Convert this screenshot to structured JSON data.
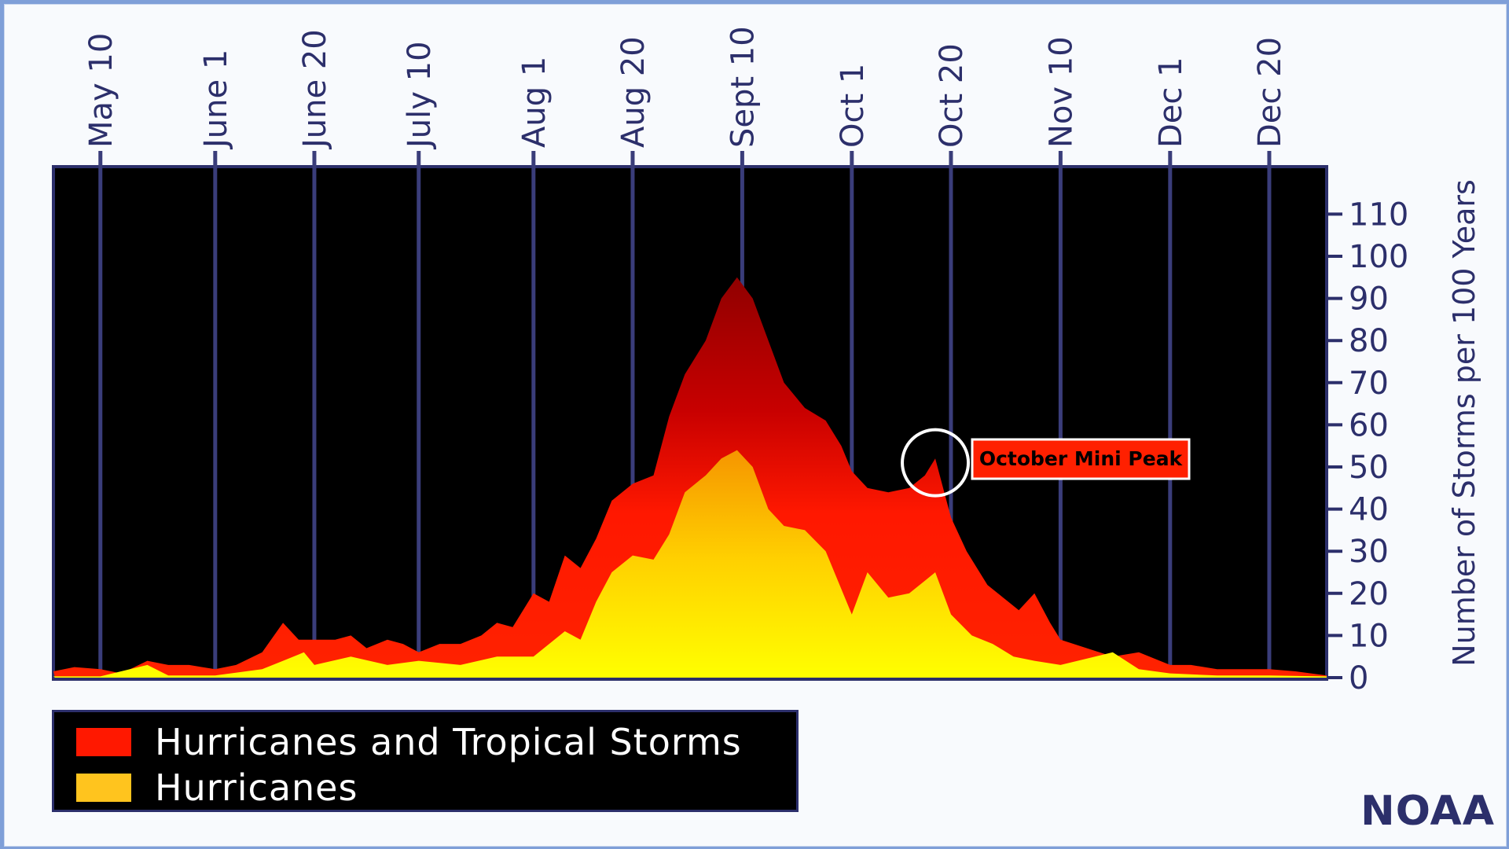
{
  "chart_data": {
    "type": "area",
    "ylabel": "Number of Storms per 100 Years",
    "xlabel": "",
    "ylim": [
      0,
      120
    ],
    "yticks": [
      0,
      10,
      20,
      30,
      40,
      50,
      60,
      70,
      80,
      90,
      100,
      110
    ],
    "xlim": [
      "May 1",
      "Dec 31"
    ],
    "x_ticks": [
      {
        "label": "May 10",
        "date": "May 10"
      },
      {
        "label": "June 1",
        "date": "June 1"
      },
      {
        "label": "June 20",
        "date": "June 20"
      },
      {
        "label": "July 10",
        "date": "July 10"
      },
      {
        "label": "Aug 1",
        "date": "Aug 1"
      },
      {
        "label": "Aug 20",
        "date": "Aug 20"
      },
      {
        "label": "Sept 10",
        "date": "Sept 10"
      },
      {
        "label": "Oct 1",
        "date": "Oct 1"
      },
      {
        "label": "Oct 20",
        "date": "Oct 20"
      },
      {
        "label": "Nov 10",
        "date": "Nov 10"
      },
      {
        "label": "Dec 1",
        "date": "Dec 1"
      },
      {
        "label": "Dec 20",
        "date": "Dec 20"
      }
    ],
    "grid": "vertical lines at tick dates",
    "legend_position": "bottom-left, below plot",
    "series": [
      {
        "name": "Hurricanes and Tropical Storms",
        "color": "#ff1800",
        "points": [
          [
            "May 1",
            1.5
          ],
          [
            "May 5",
            2.5
          ],
          [
            "May 10",
            2
          ],
          [
            "May 14",
            1
          ],
          [
            "May 19",
            4
          ],
          [
            "May 23",
            3
          ],
          [
            "May 27",
            3
          ],
          [
            "June 1",
            2
          ],
          [
            "June 5",
            3
          ],
          [
            "June 10",
            6
          ],
          [
            "June 14",
            13
          ],
          [
            "June 17",
            9
          ],
          [
            "June 20",
            9
          ],
          [
            "June 24",
            9
          ],
          [
            "June 27",
            10
          ],
          [
            "June 30",
            7
          ],
          [
            "July 4",
            9
          ],
          [
            "July 7",
            8
          ],
          [
            "July 10",
            6
          ],
          [
            "July 14",
            8
          ],
          [
            "July 18",
            8
          ],
          [
            "July 22",
            10
          ],
          [
            "July 25",
            13
          ],
          [
            "July 28",
            12
          ],
          [
            "Aug 1",
            20
          ],
          [
            "Aug 4",
            18
          ],
          [
            "Aug 7",
            29
          ],
          [
            "Aug 10",
            26
          ],
          [
            "Aug 13",
            33
          ],
          [
            "Aug 16",
            42
          ],
          [
            "Aug 20",
            46
          ],
          [
            "Aug 24",
            48
          ],
          [
            "Aug 27",
            62
          ],
          [
            "Aug 30",
            72
          ],
          [
            "Sept 3",
            80
          ],
          [
            "Sept 6",
            90
          ],
          [
            "Sept 9",
            95
          ],
          [
            "Sept 12",
            90
          ],
          [
            "Sept 15",
            80
          ],
          [
            "Sept 18",
            70
          ],
          [
            "Sept 22",
            64
          ],
          [
            "Sept 26",
            61
          ],
          [
            "Sept 29",
            55
          ],
          [
            "Oct 1",
            49
          ],
          [
            "Oct 4",
            45
          ],
          [
            "Oct 8",
            44
          ],
          [
            "Oct 12",
            45
          ],
          [
            "Oct 15",
            48
          ],
          [
            "Oct 17",
            52
          ],
          [
            "Oct 20",
            38
          ],
          [
            "Oct 23",
            30
          ],
          [
            "Oct 27",
            22
          ],
          [
            "Oct 30",
            19
          ],
          [
            "Nov 2",
            16
          ],
          [
            "Nov 5",
            20
          ],
          [
            "Nov 8",
            13
          ],
          [
            "Nov 10",
            9
          ],
          [
            "Nov 15",
            7
          ],
          [
            "Nov 20",
            5
          ],
          [
            "Nov 25",
            6
          ],
          [
            "Dec 1",
            3
          ],
          [
            "Dec 5",
            3
          ],
          [
            "Dec 10",
            2
          ],
          [
            "Dec 15",
            2
          ],
          [
            "Dec 20",
            2
          ],
          [
            "Dec 25",
            1.5
          ],
          [
            "Dec 31",
            0.5
          ]
        ]
      },
      {
        "name": "Hurricanes",
        "color": "#ffc400",
        "points": [
          [
            "May 1",
            0.3
          ],
          [
            "May 10",
            0.3
          ],
          [
            "May 19",
            3
          ],
          [
            "May 23",
            0.5
          ],
          [
            "June 1",
            0.5
          ],
          [
            "June 10",
            2
          ],
          [
            "June 14",
            4
          ],
          [
            "June 18",
            6
          ],
          [
            "June 20",
            3
          ],
          [
            "June 27",
            5
          ],
          [
            "July 4",
            3
          ],
          [
            "July 10",
            4
          ],
          [
            "July 18",
            3
          ],
          [
            "July 25",
            5
          ],
          [
            "Aug 1",
            5
          ],
          [
            "Aug 7",
            11
          ],
          [
            "Aug 10",
            9
          ],
          [
            "Aug 13",
            18
          ],
          [
            "Aug 16",
            25
          ],
          [
            "Aug 20",
            29
          ],
          [
            "Aug 24",
            28
          ],
          [
            "Aug 27",
            34
          ],
          [
            "Aug 30",
            44
          ],
          [
            "Sept 3",
            48
          ],
          [
            "Sept 6",
            52
          ],
          [
            "Sept 9",
            54
          ],
          [
            "Sept 12",
            50
          ],
          [
            "Sept 15",
            40
          ],
          [
            "Sept 18",
            36
          ],
          [
            "Sept 22",
            35
          ],
          [
            "Sept 26",
            30
          ],
          [
            "Oct 1",
            15
          ],
          [
            "Oct 4",
            25
          ],
          [
            "Oct 8",
            19
          ],
          [
            "Oct 12",
            20
          ],
          [
            "Oct 15",
            23
          ],
          [
            "Oct 17",
            25
          ],
          [
            "Oct 20",
            15
          ],
          [
            "Oct 24",
            10
          ],
          [
            "Oct 28",
            8
          ],
          [
            "Nov 1",
            5
          ],
          [
            "Nov 5",
            4
          ],
          [
            "Nov 10",
            3
          ],
          [
            "Nov 20",
            6
          ],
          [
            "Nov 25",
            2
          ],
          [
            "Dec 1",
            1
          ],
          [
            "Dec 10",
            0.5
          ],
          [
            "Dec 20",
            0.5
          ],
          [
            "Dec 31",
            0.3
          ]
        ]
      }
    ],
    "annotations": [
      {
        "text": "October Mini Peak",
        "date": "Oct 17",
        "value": 51,
        "style": "circle + red label box"
      }
    ]
  },
  "legend": {
    "items": [
      {
        "label": "Hurricanes and Tropical Storms",
        "color": "#ff1800"
      },
      {
        "label": "Hurricanes",
        "color": "#ffc400"
      }
    ]
  },
  "branding": {
    "text": "NOAA"
  },
  "colors": {
    "plot_background": "#000000",
    "axis_color": "#2c2f6b",
    "gridline_color": "#3a3d7a",
    "annotation_box": "#ff2000"
  }
}
